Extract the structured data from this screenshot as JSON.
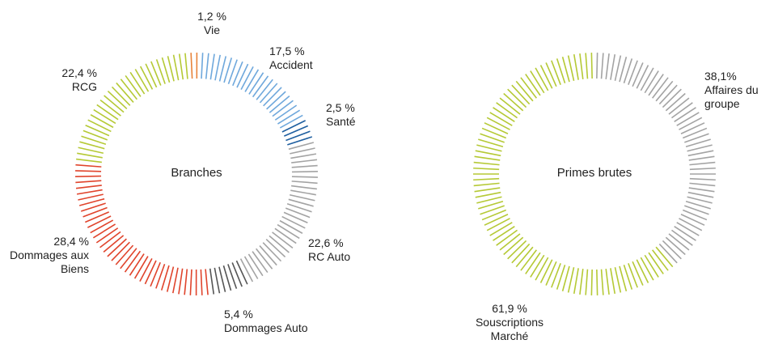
{
  "chart_data": [
    {
      "type": "donut",
      "title": "Branches",
      "categories": [
        "Vie",
        "Accident",
        "Santé",
        "RC Auto",
        "Dommages Auto",
        "Dommages aux Biens",
        "RCG"
      ],
      "values": [
        1.2,
        17.5,
        2.5,
        22.6,
        5.4,
        28.4,
        22.4
      ],
      "value_labels": [
        "1,2 %",
        "17,5 %",
        "2,5 %",
        "22,6 %",
        "5,4 %",
        "28,4 %",
        "22,4 %"
      ],
      "colors": [
        "#e8833a",
        "#6fa8dc",
        "#1f5fa0",
        "#a3a3a3",
        "#555555",
        "#e0442c",
        "#b5c935"
      ]
    },
    {
      "type": "donut",
      "title": "Primes brutes",
      "categories": [
        "Affaires du groupe",
        "Souscriptions Marché"
      ],
      "values": [
        38.1,
        61.9
      ],
      "value_labels": [
        "38,1%",
        "61,9 %"
      ],
      "colors": [
        "#a3a3a3",
        "#b5c935"
      ]
    }
  ]
}
